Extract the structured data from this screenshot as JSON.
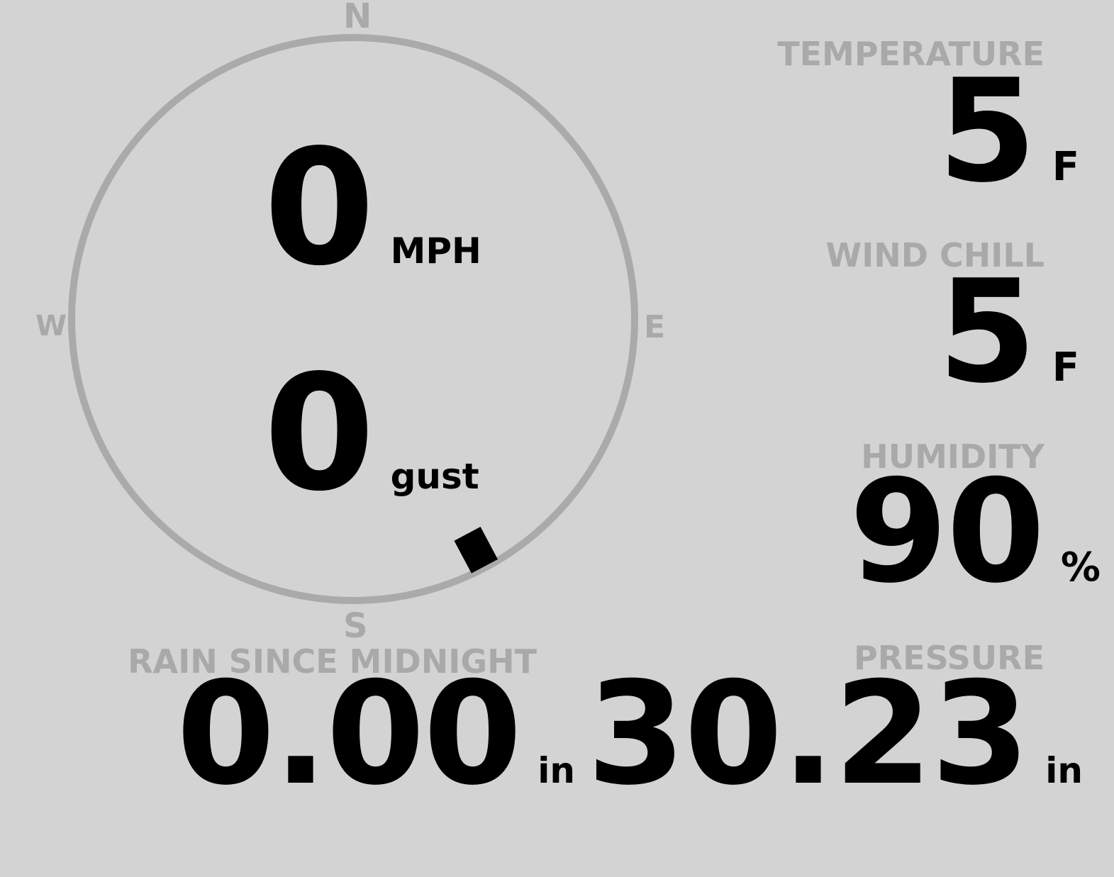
{
  "compass": {
    "n": "N",
    "e": "E",
    "s": "S",
    "w": "W",
    "direction_degrees": 152,
    "ring_color": "#aaaaaa"
  },
  "wind": {
    "speed": "0",
    "speed_unit": "MPH",
    "gust": "0",
    "gust_unit": "gust"
  },
  "temperature": {
    "label": "TEMPERATURE",
    "value": "5",
    "unit": "F"
  },
  "wind_chill": {
    "label": "WIND CHILL",
    "value": "5",
    "unit": "F"
  },
  "humidity": {
    "label": "HUMIDITY",
    "value": "90",
    "unit": "%"
  },
  "pressure": {
    "label": "PRESSURE",
    "value": "30.23",
    "unit": "in"
  },
  "rain": {
    "label": "RAIN SINCE MIDNIGHT",
    "value": "0.00",
    "unit": "in"
  },
  "colors": {
    "background": "#d3d3d3",
    "label": "#a9a9a9",
    "value": "#000000"
  }
}
